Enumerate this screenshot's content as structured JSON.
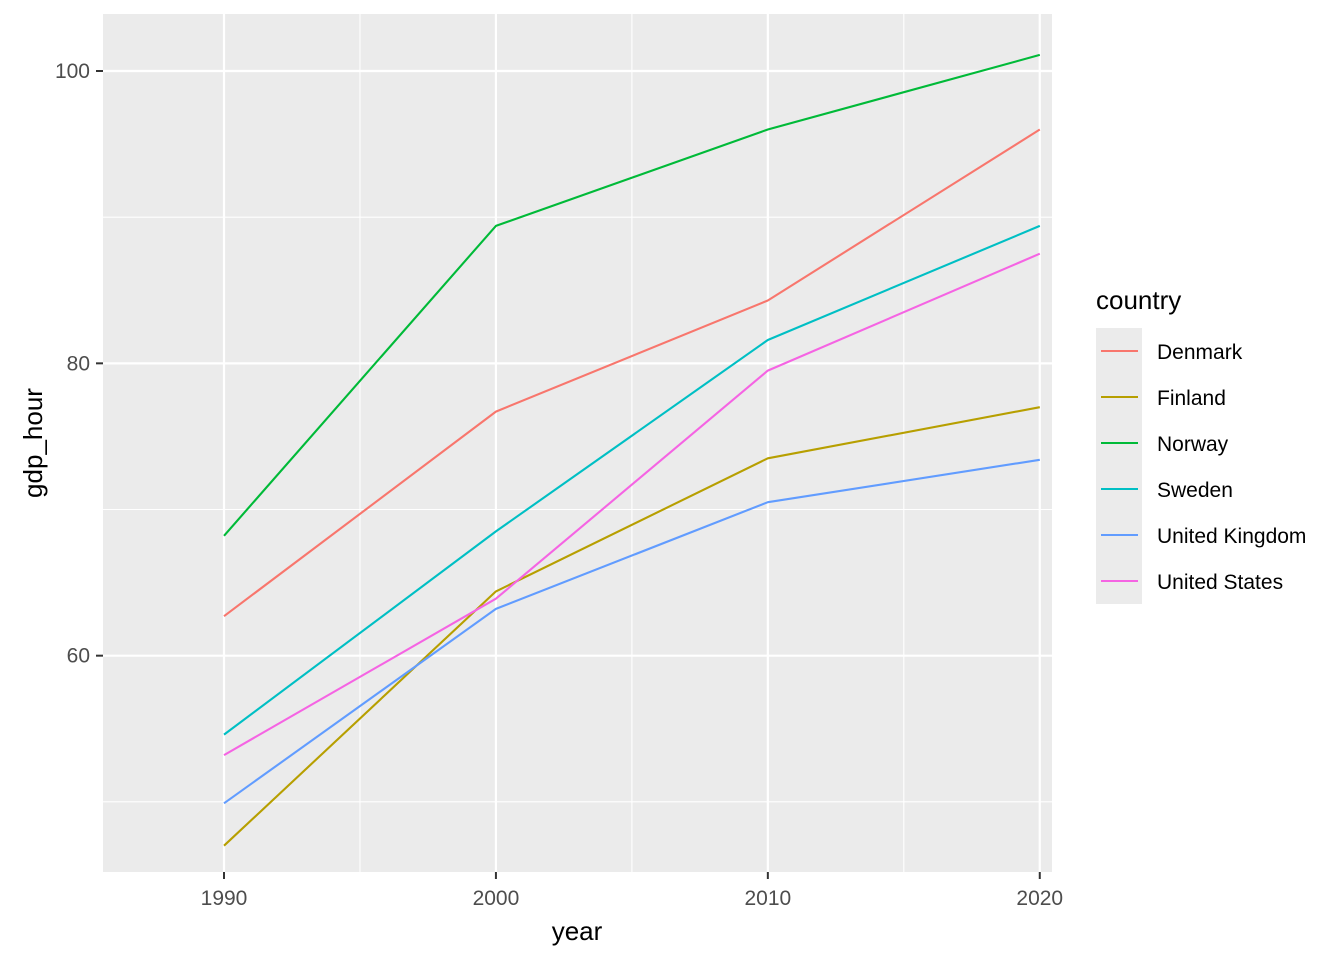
{
  "chart_data": {
    "type": "line",
    "xlabel": "year",
    "ylabel": "gdp_hour",
    "x": [
      1990,
      2000,
      2010,
      2020
    ],
    "xlim": [
      1985.55,
      2020.45
    ],
    "ylim": [
      45.2,
      103.9
    ],
    "x_ticks": [
      1990,
      2000,
      2010,
      2020
    ],
    "y_ticks": [
      60,
      80,
      100
    ],
    "x_minor": [
      1995,
      2005,
      2015
    ],
    "y_minor": [
      50,
      70,
      90
    ],
    "grid": true,
    "legend_title": "country",
    "legend_position": "right",
    "panel_color": "#ebebeb",
    "series": [
      {
        "name": "Denmark",
        "color": "#F8766D",
        "values": [
          62.7,
          76.7,
          84.3,
          96.0
        ]
      },
      {
        "name": "Finland",
        "color": "#B79F00",
        "values": [
          47.0,
          64.4,
          73.5,
          77.0
        ]
      },
      {
        "name": "Norway",
        "color": "#00BA38",
        "values": [
          68.2,
          89.4,
          96.0,
          101.1
        ]
      },
      {
        "name": "Sweden",
        "color": "#00BFC4",
        "values": [
          54.6,
          68.5,
          81.6,
          89.4
        ]
      },
      {
        "name": "United Kingdom",
        "color": "#619CFF",
        "values": [
          49.9,
          63.2,
          70.5,
          73.4
        ]
      },
      {
        "name": "United States",
        "color": "#F564E3",
        "values": [
          53.2,
          63.9,
          79.5,
          87.5
        ]
      }
    ]
  }
}
